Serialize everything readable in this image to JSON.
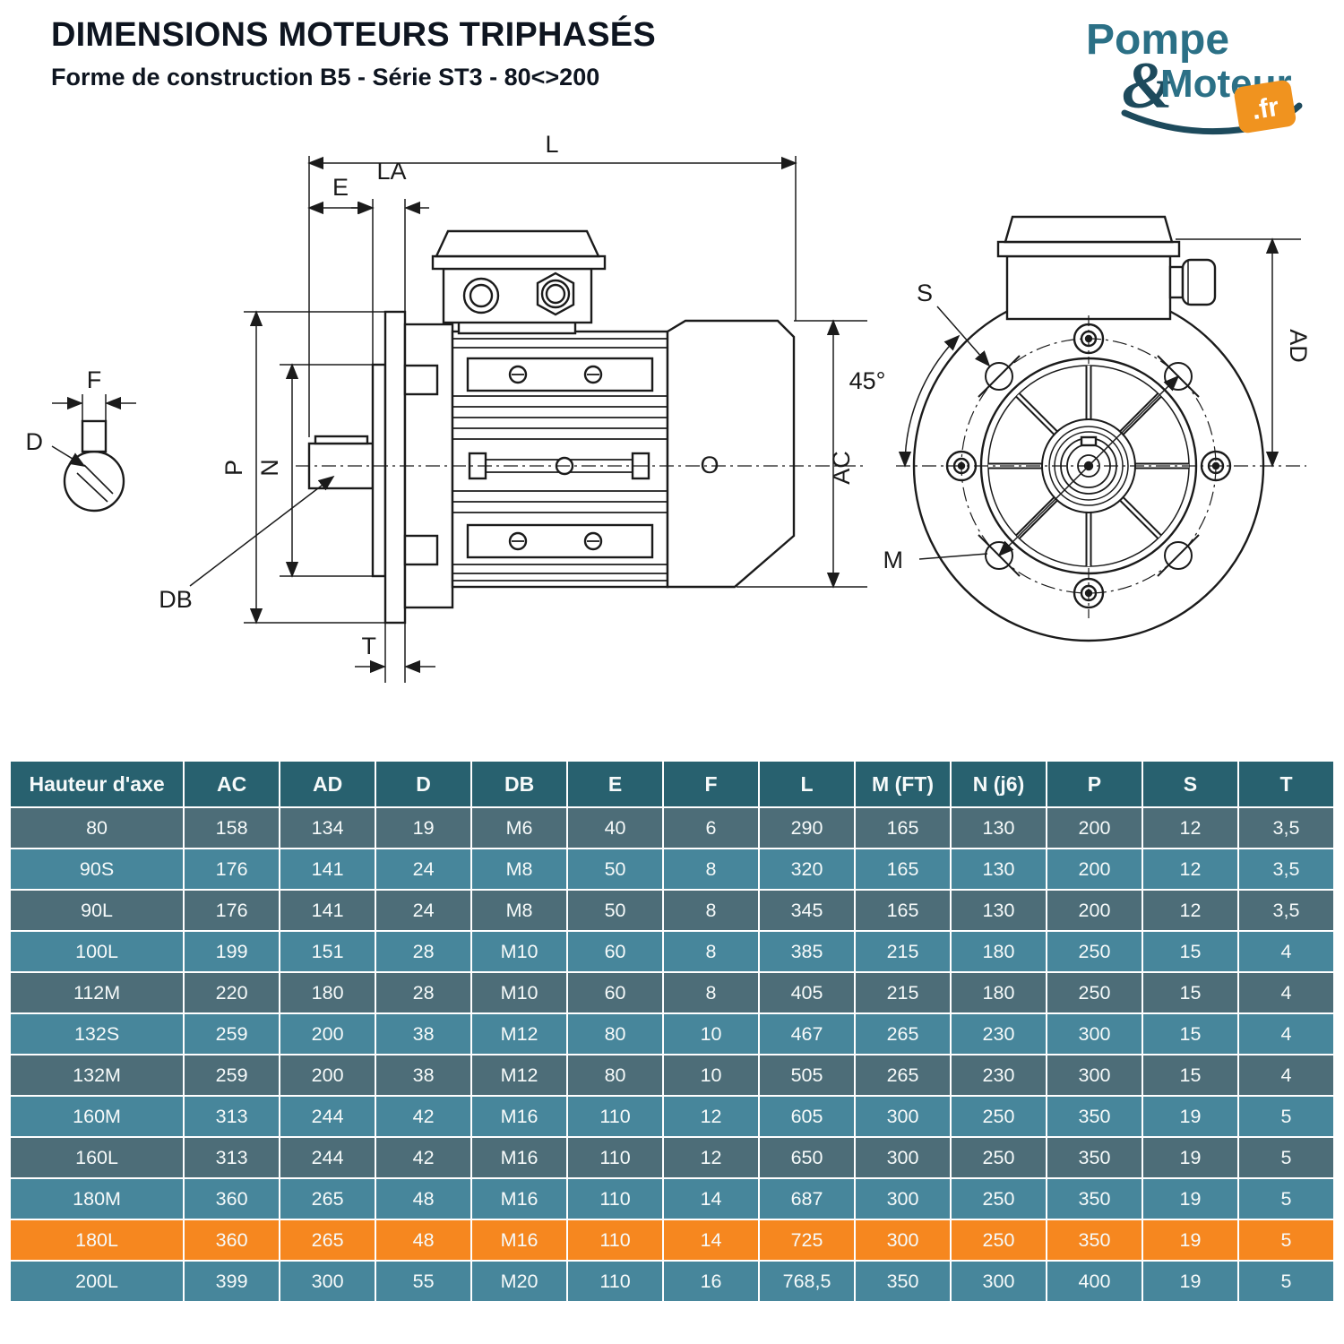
{
  "page": {
    "title": "DIMENSIONS MOTEURS TRIPHASÉS",
    "subtitle": "Forme de construction B5 - Série ST3 - 80<>200"
  },
  "logo": {
    "part1": "Pompe",
    "amp": "&",
    "part2": "Moteur",
    "tld": ".fr",
    "teal": "#2b7086",
    "navy": "#1d4a5c",
    "orange": "#f0931f"
  },
  "diagram": {
    "L": "L",
    "LA": "LA",
    "E": "E",
    "P": "P",
    "N": "N",
    "D": "D",
    "F": "F",
    "DB": "DB",
    "T": "T",
    "O": "O",
    "AC": "AC",
    "S": "S",
    "angle": "45°",
    "AD": "AD",
    "M": "M"
  },
  "table": {
    "columns": [
      "Hauteur d'axe",
      "AC",
      "AD",
      "D",
      "DB",
      "E",
      "F",
      "L",
      "M (FT)",
      "N (j6)",
      "P",
      "S",
      "T"
    ],
    "rows": [
      {
        "model": "80",
        "values": [
          "158",
          "134",
          "19",
          "M6",
          "40",
          "6",
          "290",
          "165",
          "130",
          "200",
          "12",
          "3,5"
        ],
        "highlight": false
      },
      {
        "model": "90S",
        "values": [
          "176",
          "141",
          "24",
          "M8",
          "50",
          "8",
          "320",
          "165",
          "130",
          "200",
          "12",
          "3,5"
        ],
        "highlight": false
      },
      {
        "model": "90L",
        "values": [
          "176",
          "141",
          "24",
          "M8",
          "50",
          "8",
          "345",
          "165",
          "130",
          "200",
          "12",
          "3,5"
        ],
        "highlight": false
      },
      {
        "model": "100L",
        "values": [
          "199",
          "151",
          "28",
          "M10",
          "60",
          "8",
          "385",
          "215",
          "180",
          "250",
          "15",
          "4"
        ],
        "highlight": false
      },
      {
        "model": "112M",
        "values": [
          "220",
          "180",
          "28",
          "M10",
          "60",
          "8",
          "405",
          "215",
          "180",
          "250",
          "15",
          "4"
        ],
        "highlight": false
      },
      {
        "model": "132S",
        "values": [
          "259",
          "200",
          "38",
          "M12",
          "80",
          "10",
          "467",
          "265",
          "230",
          "300",
          "15",
          "4"
        ],
        "highlight": false
      },
      {
        "model": "132M",
        "values": [
          "259",
          "200",
          "38",
          "M12",
          "80",
          "10",
          "505",
          "265",
          "230",
          "300",
          "15",
          "4"
        ],
        "highlight": false
      },
      {
        "model": "160M",
        "values": [
          "313",
          "244",
          "42",
          "M16",
          "110",
          "12",
          "605",
          "300",
          "250",
          "350",
          "19",
          "5"
        ],
        "highlight": false
      },
      {
        "model": "160L",
        "values": [
          "313",
          "244",
          "42",
          "M16",
          "110",
          "12",
          "650",
          "300",
          "250",
          "350",
          "19",
          "5"
        ],
        "highlight": false
      },
      {
        "model": "180M",
        "values": [
          "360",
          "265",
          "48",
          "M16",
          "110",
          "14",
          "687",
          "300",
          "250",
          "350",
          "19",
          "5"
        ],
        "highlight": false
      },
      {
        "model": "180L",
        "values": [
          "360",
          "265",
          "48",
          "M16",
          "110",
          "14",
          "725",
          "300",
          "250",
          "350",
          "19",
          "5"
        ],
        "highlight": true
      },
      {
        "model": "200L",
        "values": [
          "399",
          "300",
          "55",
          "M20",
          "110",
          "16",
          "768,5",
          "350",
          "300",
          "400",
          "19",
          "5"
        ],
        "highlight": false
      }
    ],
    "colors": {
      "header": "#28616f",
      "row_dark": "#4d6d78",
      "row_light": "#47869b",
      "highlight": "#f6871f"
    }
  }
}
